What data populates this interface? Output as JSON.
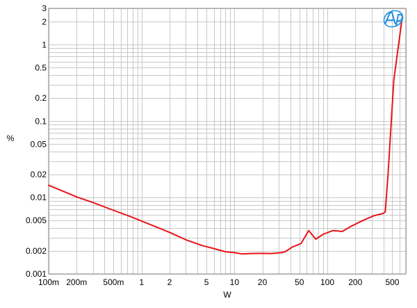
{
  "chart_data": {
    "type": "line",
    "title": "",
    "xlabel": "W",
    "ylabel": "%",
    "x_scale": "log",
    "y_scale": "log",
    "xlim": [
      0.1,
      700
    ],
    "ylim": [
      0.001,
      3
    ],
    "grid": true,
    "x_ticks": [
      {
        "value": 0.1,
        "label": "100m"
      },
      {
        "value": 0.2,
        "label": "200m"
      },
      {
        "value": 0.5,
        "label": "500m"
      },
      {
        "value": 1,
        "label": "1"
      },
      {
        "value": 2,
        "label": "2"
      },
      {
        "value": 5,
        "label": "5"
      },
      {
        "value": 10,
        "label": "10"
      },
      {
        "value": 20,
        "label": "20"
      },
      {
        "value": 50,
        "label": "50"
      },
      {
        "value": 100,
        "label": "100"
      },
      {
        "value": 200,
        "label": "200"
      },
      {
        "value": 500,
        "label": "500"
      }
    ],
    "y_ticks": [
      {
        "value": 3,
        "label": "3"
      },
      {
        "value": 2,
        "label": "2"
      },
      {
        "value": 1,
        "label": "1"
      },
      {
        "value": 0.5,
        "label": "0.5"
      },
      {
        "value": 0.2,
        "label": "0.2"
      },
      {
        "value": 0.1,
        "label": "0.1"
      },
      {
        "value": 0.05,
        "label": "0.05"
      },
      {
        "value": 0.02,
        "label": "0.02"
      },
      {
        "value": 0.01,
        "label": "0.01"
      },
      {
        "value": 0.005,
        "label": "0.005"
      },
      {
        "value": 0.002,
        "label": "0.002"
      },
      {
        "value": 0.001,
        "label": "0.001"
      }
    ],
    "series": [
      {
        "color": "#e8141b",
        "x": [
          0.1,
          0.15,
          0.2,
          0.3,
          0.5,
          0.8,
          1.2,
          2,
          3,
          4.5,
          6,
          8,
          10,
          12,
          15,
          20,
          25,
          32,
          35,
          42,
          52,
          63,
          75,
          90,
          115,
          145,
          180,
          240,
          320,
          400,
          420,
          450,
          520,
          640
        ],
        "values": [
          0.0145,
          0.0118,
          0.0102,
          0.0086,
          0.0068,
          0.0055,
          0.0045,
          0.0035,
          0.0028,
          0.00235,
          0.00215,
          0.00195,
          0.0019,
          0.00183,
          0.00185,
          0.00186,
          0.00185,
          0.0019,
          0.00195,
          0.00225,
          0.0025,
          0.0037,
          0.00285,
          0.0033,
          0.0037,
          0.0036,
          0.0042,
          0.005,
          0.0058,
          0.0062,
          0.0065,
          0.02,
          0.35,
          2.3
        ]
      }
    ]
  },
  "brand": {
    "logo_text": "AP",
    "color": "#1e8fe0"
  }
}
